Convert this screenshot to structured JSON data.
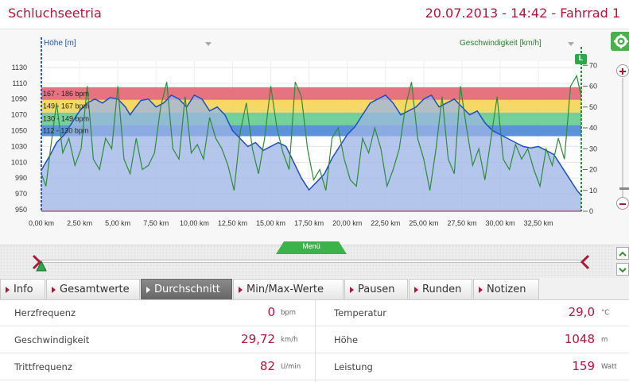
{
  "header": {
    "title": "Schluchseetria",
    "session": "20.07.2013 - 14:42 - Fahrrad 1"
  },
  "chart": {
    "left_axis_selector": "Höhe [m]",
    "right_axis_selector": "Geschwindigkeit [km/h]",
    "lap_marker_label": "L",
    "menu_label": "Menü",
    "colors": {
      "altitude_fill": "#9bb3e6",
      "altitude_line": "#1f4fbf",
      "speed_line": "#2e8b3a",
      "zone1": "#3f7fd0",
      "zone2": "#5cc98a",
      "zone3": "#f4d24a",
      "zone4": "#e05a6a",
      "accent": "#b0163a"
    }
  },
  "chart_data": {
    "type": "line",
    "x_unit": "km",
    "xlim": [
      0,
      35.3
    ],
    "x_ticks": [
      "0,00 km",
      "2,50 km",
      "5,00 km",
      "7,50 km",
      "10,00 km",
      "12,50 km",
      "15,00 km",
      "17,50 km",
      "20,00 km",
      "22,50 km",
      "25,00 km",
      "27,50 km",
      "30,00 km",
      "32,50 km"
    ],
    "x_tick_values": [
      0,
      2.5,
      5,
      7.5,
      10,
      12.5,
      15,
      17.5,
      20,
      22.5,
      25,
      27.5,
      30,
      32.5
    ],
    "y_left": {
      "label": "Höhe [m]",
      "ticks": [
        "950",
        "970",
        "990",
        "1010",
        "1030",
        "1050",
        "1070",
        "1090",
        "1110",
        "1130"
      ],
      "tick_values": [
        950,
        970,
        990,
        1010,
        1030,
        1050,
        1070,
        1090,
        1110,
        1130
      ],
      "ylim": [
        948,
        1138
      ]
    },
    "y_right": {
      "label": "Geschwindigkeit [km/h]",
      "ticks": [
        "0",
        "10",
        "20",
        "30",
        "40",
        "50",
        "60",
        "70"
      ],
      "tick_values": [
        0,
        10,
        20,
        30,
        40,
        50,
        60,
        70
      ],
      "ylim": [
        0,
        72
      ]
    },
    "hr_zones": [
      {
        "label": "112 - 130 bpm",
        "from": 1043,
        "to": 1057
      },
      {
        "label": "130 - 149 bpm",
        "from": 1057,
        "to": 1073
      },
      {
        "label": "149 - 167 bpm",
        "from": 1073,
        "to": 1089
      },
      {
        "label": "167 - 186 bpm",
        "from": 1089,
        "to": 1105
      }
    ],
    "series": [
      {
        "name": "Höhe [m]",
        "axis": "left",
        "x": [
          0.0,
          0.3,
          0.6,
          1.0,
          1.5,
          2.0,
          2.5,
          3.0,
          3.5,
          4.0,
          4.5,
          5.0,
          5.5,
          5.8,
          6.1,
          6.5,
          7.0,
          7.5,
          8.0,
          8.5,
          9.0,
          9.5,
          10.0,
          10.5,
          11.0,
          11.5,
          12.0,
          12.5,
          13.0,
          13.5,
          14.0,
          14.5,
          15.0,
          15.5,
          16.0,
          16.5,
          17.0,
          17.5,
          18.0,
          18.5,
          19.0,
          19.5,
          20.0,
          20.5,
          21.0,
          21.5,
          22.0,
          22.5,
          23.0,
          23.5,
          24.0,
          24.5,
          25.0,
          25.5,
          26.0,
          26.5,
          27.0,
          27.5,
          28.0,
          28.5,
          29.0,
          29.5,
          30.0,
          30.5,
          31.0,
          31.5,
          32.0,
          32.5,
          33.0,
          33.5,
          34.0,
          34.5,
          35.0,
          35.3
        ],
        "y": [
          1000,
          1010,
          1020,
          1035,
          1045,
          1060,
          1075,
          1085,
          1090,
          1085,
          1092,
          1090,
          1080,
          1070,
          1078,
          1088,
          1090,
          1080,
          1085,
          1095,
          1090,
          1080,
          1095,
          1090,
          1075,
          1080,
          1070,
          1050,
          1040,
          1030,
          1035,
          1025,
          1030,
          1035,
          1030,
          1010,
          990,
          975,
          985,
          995,
          1015,
          1030,
          1045,
          1055,
          1070,
          1085,
          1090,
          1095,
          1085,
          1070,
          1075,
          1080,
          1090,
          1095,
          1080,
          1085,
          1090,
          1080,
          1070,
          1075,
          1060,
          1050,
          1045,
          1040,
          1035,
          1030,
          1028,
          1030,
          1025,
          1020,
          1005,
          990,
          975,
          968
        ]
      },
      {
        "name": "Geschwindigkeit [km/h]",
        "axis": "right",
        "x": [
          0.0,
          0.3,
          0.6,
          1.0,
          1.4,
          1.8,
          2.2,
          2.6,
          3.0,
          3.4,
          3.8,
          4.2,
          4.6,
          5.0,
          5.4,
          5.8,
          6.2,
          6.6,
          7.0,
          7.4,
          7.8,
          8.2,
          8.6,
          9.0,
          9.4,
          9.8,
          10.2,
          10.6,
          11.0,
          11.4,
          11.8,
          12.2,
          12.6,
          13.0,
          13.4,
          13.8,
          14.2,
          14.6,
          15.0,
          15.4,
          15.8,
          16.2,
          16.6,
          17.0,
          17.4,
          17.8,
          18.2,
          18.6,
          19.0,
          19.4,
          19.8,
          20.2,
          20.6,
          21.0,
          21.4,
          21.8,
          22.2,
          22.6,
          23.0,
          23.4,
          23.8,
          24.2,
          24.6,
          25.0,
          25.4,
          25.8,
          26.2,
          26.6,
          27.0,
          27.4,
          27.8,
          28.2,
          28.6,
          29.0,
          29.4,
          29.8,
          30.2,
          30.6,
          31.0,
          31.4,
          31.8,
          32.2,
          32.6,
          33.0,
          33.4,
          33.8,
          34.2,
          34.6,
          35.0,
          35.3
        ],
        "y": [
          18,
          12,
          30,
          52,
          28,
          35,
          22,
          30,
          60,
          25,
          20,
          35,
          30,
          60,
          25,
          18,
          35,
          20,
          22,
          28,
          50,
          62,
          30,
          25,
          55,
          28,
          32,
          25,
          45,
          35,
          30,
          22,
          10,
          38,
          52,
          30,
          18,
          35,
          60,
          40,
          28,
          20,
          62,
          55,
          30,
          15,
          20,
          10,
          35,
          40,
          25,
          15,
          12,
          35,
          28,
          40,
          30,
          12,
          20,
          30,
          50,
          62,
          35,
          25,
          10,
          30,
          55,
          25,
          18,
          60,
          40,
          22,
          30,
          15,
          35,
          55,
          25,
          20,
          32,
          25,
          30,
          20,
          12,
          30,
          22,
          35,
          25,
          60,
          65,
          55
        ]
      }
    ],
    "grid": true,
    "legend": "none"
  },
  "tabs": [
    {
      "label": "Info"
    },
    {
      "label": "Gesamtwerte"
    },
    {
      "label": "Durchschnitt"
    },
    {
      "label": "Min/Max-Werte"
    },
    {
      "label": "Pausen"
    },
    {
      "label": "Runden"
    },
    {
      "label": "Notizen"
    }
  ],
  "stats": {
    "left": [
      {
        "label": "Herzfrequenz",
        "value": "0",
        "unit": "bpm"
      },
      {
        "label": "Geschwindigkeit",
        "value": "29,72",
        "unit": "km/h"
      },
      {
        "label": "Trittfrequenz",
        "value": "82",
        "unit": "U/min"
      }
    ],
    "right": [
      {
        "label": "Temperatur",
        "value": "29,0",
        "unit": "°C"
      },
      {
        "label": "Höhe",
        "value": "1048",
        "unit": "m"
      },
      {
        "label": "Leistung",
        "value": "159",
        "unit": "Watt"
      }
    ]
  }
}
